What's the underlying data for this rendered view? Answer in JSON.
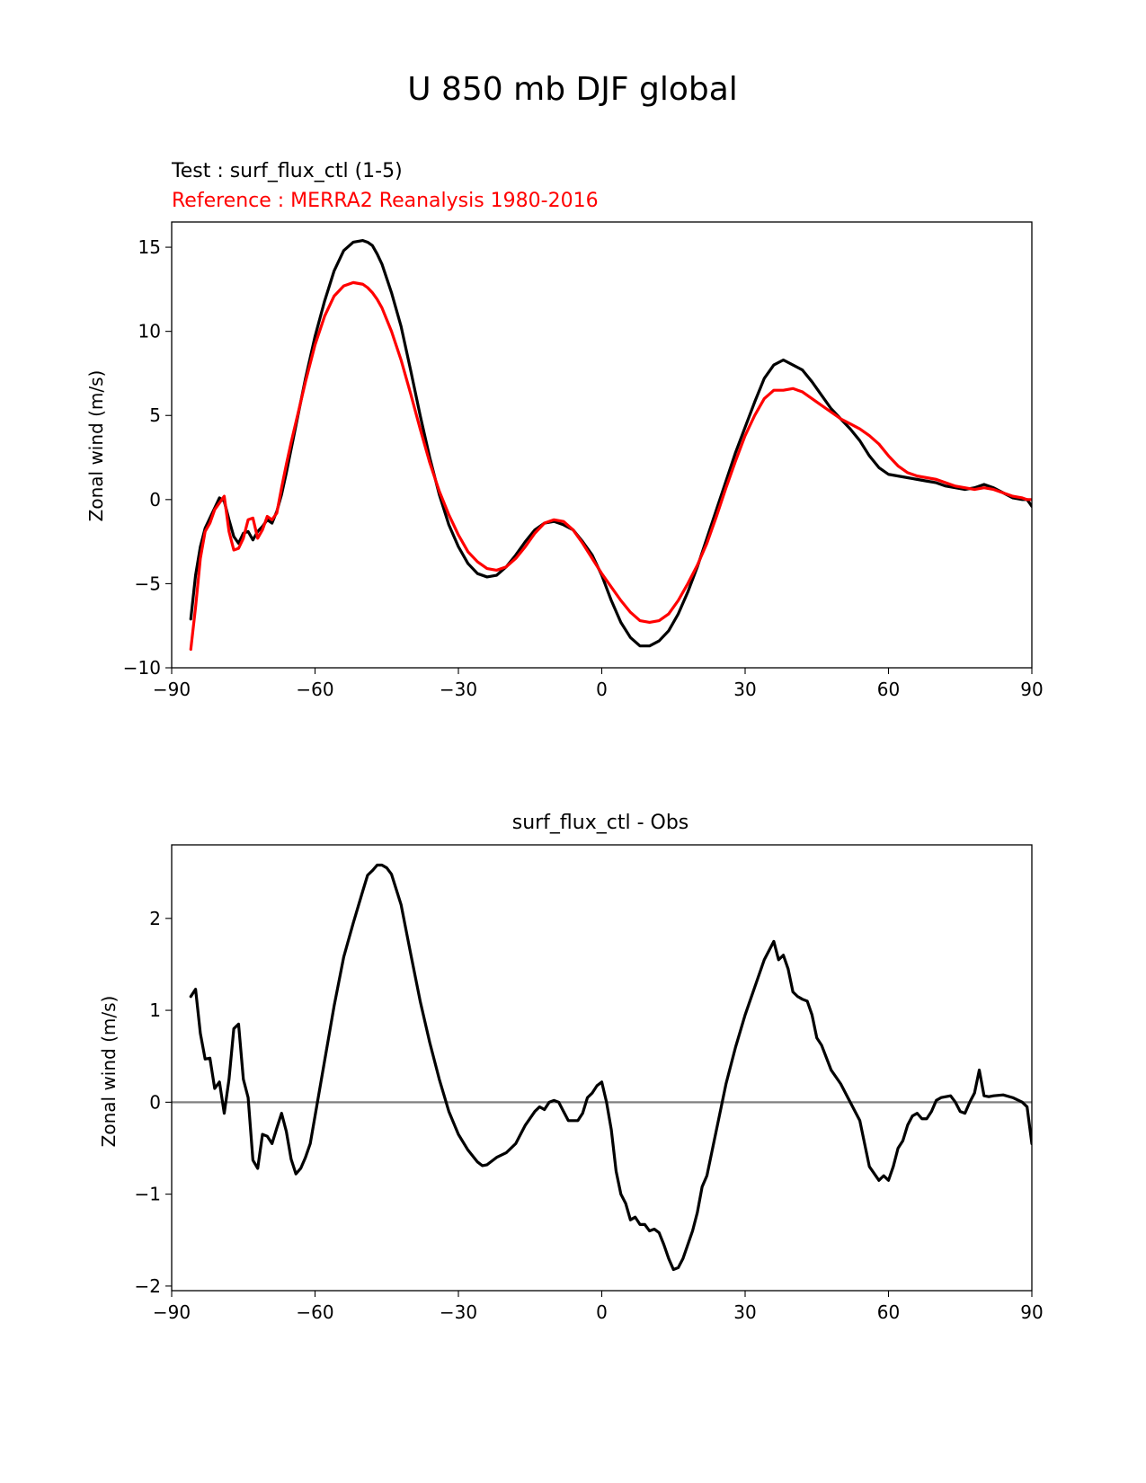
{
  "figure": {
    "suptitle": "U 850 mb DJF global"
  },
  "chart_data": [
    {
      "type": "line",
      "title": "",
      "subtitle_test": "Test : surf_flux_ctl (1-5)",
      "subtitle_reference": "Reference : MERRA2 Reanalysis 1980-2016",
      "subtitle_test_color": "#000000",
      "subtitle_reference_color": "#ff0000",
      "xlabel": "",
      "ylabel": "Zonal wind (m/s)",
      "xlim": [
        -90,
        90
      ],
      "ylim": [
        -10,
        16.5
      ],
      "xticks": [
        -90,
        -60,
        -30,
        0,
        30,
        60,
        90
      ],
      "yticks": [
        -10,
        -5,
        0,
        5,
        10,
        15
      ],
      "xtick_labels": [
        "−90",
        "−60",
        "−30",
        "0",
        "30",
        "60",
        "90"
      ],
      "ytick_labels": [
        "−10",
        "−5",
        "0",
        "5",
        "10",
        "15"
      ],
      "grid": false,
      "zero_line": false,
      "series": [
        {
          "name": "Test : surf_flux_ctl (1-5)",
          "color": "#000000",
          "x": [
            -86,
            -85,
            -84,
            -83,
            -82,
            -81,
            -80,
            -79,
            -78,
            -77,
            -76,
            -75,
            -74,
            -73,
            -72,
            -71,
            -70,
            -69,
            -68,
            -67,
            -66,
            -65,
            -62,
            -60,
            -58,
            -56,
            -54,
            -52,
            -50,
            -49,
            -48,
            -47,
            -46,
            -44,
            -42,
            -40,
            -38,
            -36,
            -34,
            -32,
            -30,
            -28,
            -26,
            -24,
            -22,
            -20,
            -18,
            -16,
            -14,
            -12,
            -10,
            -8,
            -6,
            -4,
            -2,
            0,
            2,
            4,
            6,
            8,
            10,
            12,
            14,
            16,
            18,
            20,
            22,
            24,
            26,
            28,
            30,
            32,
            34,
            36,
            38,
            40,
            42,
            44,
            46,
            48,
            50,
            52,
            54,
            56,
            58,
            60,
            62,
            64,
            66,
            68,
            70,
            72,
            74,
            76,
            78,
            80,
            82,
            84,
            86,
            88,
            89,
            90
          ],
          "y": [
            -7.1,
            -4.5,
            -2.8,
            -1.7,
            -1.1,
            -0.5,
            0.1,
            -0.1,
            -1.2,
            -2.2,
            -2.6,
            -2.0,
            -1.9,
            -2.4,
            -1.9,
            -1.6,
            -1.2,
            -1.4,
            -0.7,
            0.3,
            1.6,
            3.0,
            7.2,
            9.7,
            11.8,
            13.6,
            14.8,
            15.3,
            15.4,
            15.3,
            15.1,
            14.6,
            14.0,
            12.3,
            10.3,
            7.7,
            5.0,
            2.5,
            0.3,
            -1.5,
            -2.8,
            -3.8,
            -4.4,
            -4.6,
            -4.5,
            -4.0,
            -3.3,
            -2.5,
            -1.8,
            -1.4,
            -1.3,
            -1.5,
            -1.8,
            -2.5,
            -3.3,
            -4.5,
            -6.0,
            -7.3,
            -8.2,
            -8.7,
            -8.7,
            -8.4,
            -7.8,
            -6.8,
            -5.5,
            -4.0,
            -2.3,
            -0.6,
            1.1,
            2.8,
            4.3,
            5.8,
            7.2,
            8.0,
            8.3,
            8.0,
            7.7,
            7.0,
            6.2,
            5.4,
            4.8,
            4.2,
            3.5,
            2.6,
            1.9,
            1.5,
            1.4,
            1.3,
            1.2,
            1.1,
            1.0,
            0.8,
            0.7,
            0.6,
            0.7,
            0.9,
            0.7,
            0.4,
            0.1,
            0.0,
            0.0,
            -0.4
          ]
        },
        {
          "name": "Reference : MERRA2 Reanalysis 1980-2016",
          "color": "#ff0000",
          "x": [
            -86,
            -85,
            -84,
            -83,
            -82,
            -81,
            -80,
            -79,
            -78,
            -77,
            -76,
            -75,
            -74,
            -73,
            -72,
            -71,
            -70,
            -69,
            -68,
            -67,
            -66,
            -65,
            -62,
            -60,
            -58,
            -56,
            -54,
            -52,
            -50,
            -49,
            -48,
            -47,
            -46,
            -44,
            -42,
            -40,
            -38,
            -36,
            -34,
            -32,
            -30,
            -28,
            -26,
            -24,
            -22,
            -20,
            -18,
            -16,
            -14,
            -12,
            -10,
            -8,
            -6,
            -4,
            -2,
            0,
            2,
            4,
            6,
            8,
            10,
            12,
            14,
            16,
            18,
            20,
            22,
            24,
            26,
            28,
            30,
            32,
            34,
            36,
            38,
            40,
            42,
            44,
            46,
            48,
            50,
            52,
            54,
            56,
            58,
            60,
            62,
            64,
            66,
            68,
            70,
            72,
            74,
            76,
            78,
            80,
            82,
            84,
            86,
            88,
            89,
            90
          ],
          "y": [
            -8.9,
            -6.4,
            -3.5,
            -1.9,
            -1.4,
            -0.6,
            -0.2,
            0.2,
            -1.9,
            -3.0,
            -2.9,
            -2.3,
            -1.2,
            -1.1,
            -2.3,
            -1.8,
            -1.0,
            -1.2,
            -0.8,
            0.7,
            2.1,
            3.4,
            7.0,
            9.2,
            10.9,
            12.1,
            12.7,
            12.9,
            12.8,
            12.6,
            12.3,
            11.9,
            11.4,
            10.0,
            8.3,
            6.3,
            4.2,
            2.2,
            0.5,
            -0.9,
            -2.1,
            -3.1,
            -3.7,
            -4.1,
            -4.2,
            -4.0,
            -3.5,
            -2.8,
            -2.0,
            -1.4,
            -1.2,
            -1.3,
            -1.8,
            -2.6,
            -3.5,
            -4.4,
            -5.2,
            -6.0,
            -6.7,
            -7.2,
            -7.3,
            -7.2,
            -6.8,
            -6.0,
            -5.0,
            -3.9,
            -2.6,
            -1.0,
            0.7,
            2.3,
            3.8,
            5.0,
            6.0,
            6.5,
            6.5,
            6.6,
            6.4,
            6.0,
            5.6,
            5.2,
            4.8,
            4.5,
            4.2,
            3.8,
            3.3,
            2.6,
            2.0,
            1.6,
            1.4,
            1.3,
            1.2,
            1.0,
            0.8,
            0.7,
            0.6,
            0.7,
            0.6,
            0.4,
            0.2,
            0.1,
            0.0,
            0.0
          ]
        }
      ]
    },
    {
      "type": "line",
      "title": "surf_flux_ctl - Obs",
      "xlabel": "",
      "ylabel": "Zonal wind (m/s)",
      "xlim": [
        -90,
        90
      ],
      "ylim": [
        -2.05,
        2.8
      ],
      "xticks": [
        -90,
        -60,
        -30,
        0,
        30,
        60,
        90
      ],
      "yticks": [
        -2,
        -1,
        0,
        1,
        2
      ],
      "xtick_labels": [
        "−90",
        "−60",
        "−30",
        "0",
        "30",
        "60",
        "90"
      ],
      "ytick_labels": [
        "−2",
        "−1",
        "0",
        "1",
        "2"
      ],
      "grid": false,
      "zero_line": true,
      "zero_line_color": "#808080",
      "series": [
        {
          "name": "surf_flux_ctl - Obs",
          "color": "#000000",
          "x": [
            -86,
            -85,
            -84,
            -83,
            -82,
            -81,
            -80,
            -79,
            -78,
            -77,
            -76,
            -75,
            -74,
            -73,
            -72,
            -71,
            -70,
            -69,
            -68,
            -67,
            -66,
            -65,
            -64,
            -63,
            -62,
            -61,
            -60,
            -58,
            -56,
            -54,
            -52,
            -50,
            -49,
            -48,
            -47,
            -46,
            -45,
            -44,
            -42,
            -40,
            -38,
            -36,
            -34,
            -32,
            -30,
            -28,
            -26,
            -25,
            -24,
            -22,
            -20,
            -18,
            -16,
            -14,
            -13,
            -12,
            -11,
            -10,
            -9,
            -8,
            -7,
            -6,
            -5,
            -4,
            -3,
            -2,
            -1,
            0,
            1,
            2,
            3,
            4,
            5,
            6,
            7,
            8,
            9,
            10,
            11,
            12,
            13,
            14,
            15,
            16,
            17,
            18,
            19,
            20,
            21,
            22,
            24,
            26,
            28,
            30,
            32,
            34,
            36,
            37,
            38,
            39,
            40,
            41,
            42,
            43,
            44,
            45,
            46,
            48,
            50,
            52,
            54,
            56,
            58,
            59,
            60,
            61,
            62,
            63,
            64,
            65,
            66,
            67,
            68,
            69,
            70,
            71,
            72,
            73,
            74,
            75,
            76,
            77,
            78,
            79,
            80,
            81,
            82,
            84,
            86,
            88,
            89,
            90
          ],
          "y": [
            1.15,
            1.23,
            0.75,
            0.47,
            0.48,
            0.15,
            0.22,
            -0.12,
            0.25,
            0.8,
            0.85,
            0.25,
            0.05,
            -0.63,
            -0.72,
            -0.35,
            -0.37,
            -0.45,
            -0.28,
            -0.12,
            -0.32,
            -0.62,
            -0.78,
            -0.72,
            -0.6,
            -0.45,
            -0.15,
            0.45,
            1.05,
            1.58,
            1.95,
            2.3,
            2.47,
            2.52,
            2.58,
            2.58,
            2.55,
            2.48,
            2.15,
            1.62,
            1.1,
            0.65,
            0.25,
            -0.1,
            -0.35,
            -0.52,
            -0.65,
            -0.69,
            -0.68,
            -0.6,
            -0.55,
            -0.45,
            -0.25,
            -0.1,
            -0.05,
            -0.08,
            0.0,
            0.02,
            0.0,
            -0.1,
            -0.2,
            -0.2,
            -0.2,
            -0.12,
            0.05,
            0.1,
            0.18,
            0.22,
            0.0,
            -0.3,
            -0.75,
            -1.0,
            -1.1,
            -1.28,
            -1.25,
            -1.33,
            -1.33,
            -1.4,
            -1.38,
            -1.42,
            -1.55,
            -1.7,
            -1.82,
            -1.8,
            -1.7,
            -1.55,
            -1.4,
            -1.2,
            -0.92,
            -0.8,
            -0.3,
            0.2,
            0.6,
            0.95,
            1.25,
            1.55,
            1.75,
            1.55,
            1.6,
            1.45,
            1.2,
            1.15,
            1.12,
            1.1,
            0.95,
            0.7,
            0.62,
            0.35,
            0.2,
            0.0,
            -0.2,
            -0.7,
            -0.85,
            -0.8,
            -0.85,
            -0.7,
            -0.5,
            -0.42,
            -0.25,
            -0.15,
            -0.12,
            -0.18,
            -0.18,
            -0.1,
            0.02,
            0.05,
            0.06,
            0.07,
            0.0,
            -0.1,
            -0.12,
            0.0,
            0.1,
            0.35,
            0.07,
            0.06,
            0.07,
            0.08,
            0.05,
            0.0,
            -0.05,
            -0.45
          ]
        }
      ]
    }
  ]
}
